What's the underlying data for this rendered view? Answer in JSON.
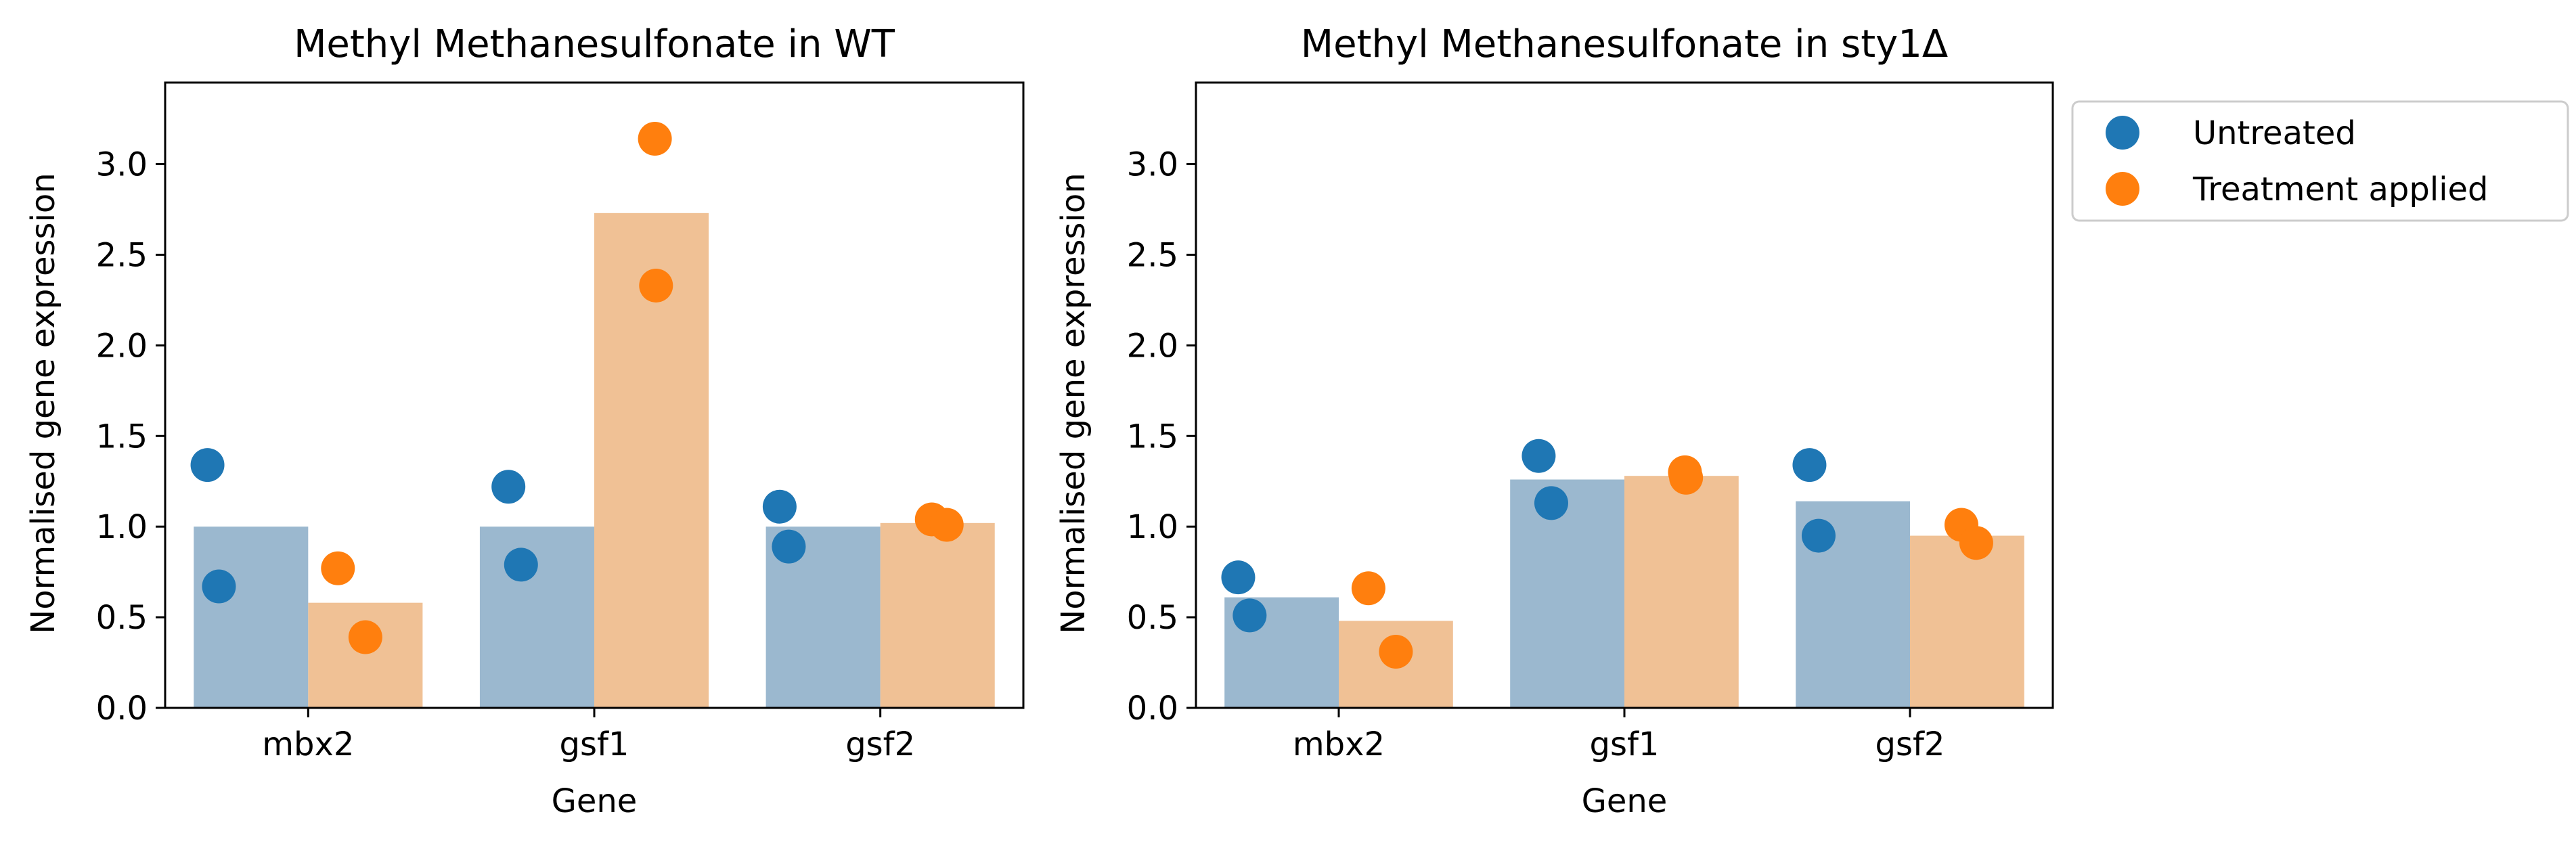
{
  "colors": {
    "untreated": "#1f77b4",
    "treated": "#ff7f0e",
    "untreated_bar": "#9bb8cf",
    "treated_bar": "#f0c195"
  },
  "legend": {
    "placement": "outside-top-right",
    "entries": [
      "Untreated",
      "Treatment applied"
    ]
  },
  "chart_data": [
    {
      "type": "bar",
      "title": "Methyl Methanesulfonate in WT",
      "xlabel": "Gene",
      "ylabel": "Normalised gene expression",
      "categories": [
        "mbx2",
        "gsf1",
        "gsf2"
      ],
      "ylim": [
        0,
        3.45
      ],
      "yticks": [
        "0.0",
        "0.5",
        "1.0",
        "1.5",
        "2.0",
        "2.5",
        "3.0"
      ],
      "series": [
        {
          "name": "Untreated",
          "values": [
            1.0,
            1.0,
            1.0
          ],
          "points": [
            [
              1.34,
              0.67
            ],
            [
              1.22,
              0.79
            ],
            [
              1.11,
              0.89
            ]
          ]
        },
        {
          "name": "Treatment applied",
          "values": [
            0.58,
            2.73,
            1.02
          ],
          "points": [
            [
              0.77,
              0.39
            ],
            [
              3.14,
              2.33
            ],
            [
              1.04,
              1.01
            ]
          ]
        }
      ]
    },
    {
      "type": "bar",
      "title": "Methyl Methanesulfonate in sty1Δ",
      "xlabel": "Gene",
      "ylabel": "Normalised gene expression",
      "categories": [
        "mbx2",
        "gsf1",
        "gsf2"
      ],
      "ylim": [
        0,
        3.45
      ],
      "yticks": [
        "0.0",
        "0.5",
        "1.0",
        "1.5",
        "2.0",
        "2.5",
        "3.0"
      ],
      "series": [
        {
          "name": "Untreated",
          "values": [
            0.61,
            1.26,
            1.14
          ],
          "points": [
            [
              0.72,
              0.51
            ],
            [
              1.39,
              1.13
            ],
            [
              1.34,
              0.95
            ]
          ]
        },
        {
          "name": "Treatment applied",
          "values": [
            0.48,
            1.28,
            0.95
          ],
          "points": [
            [
              0.66,
              0.31
            ],
            [
              1.3,
              1.27
            ],
            [
              1.01,
              0.91
            ]
          ]
        }
      ]
    }
  ]
}
